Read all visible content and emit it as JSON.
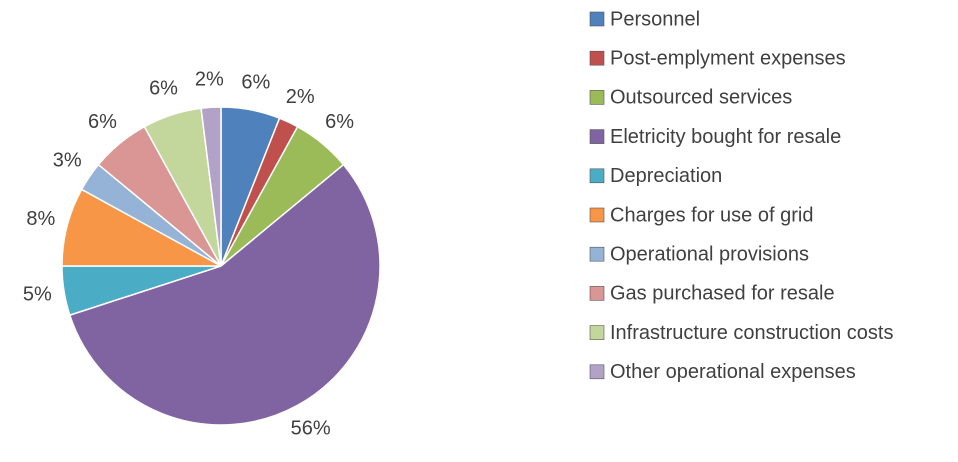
{
  "chart_data": {
    "type": "pie",
    "categories": [
      "Personnel",
      "Post-emplyment expenses",
      "Outsourced services",
      "Eletricity bought for resale",
      "Depreciation",
      "Charges for use of grid",
      "Operational provisions",
      "Gas purchased for resale",
      "Infrastructure construction costs",
      "Other operational expenses"
    ],
    "values": [
      6,
      2,
      6,
      56,
      5,
      8,
      3,
      6,
      6,
      2
    ],
    "value_labels": [
      "6%",
      "2%",
      "6%",
      "56%",
      "5%",
      "8%",
      "3%",
      "6%",
      "6%",
      "2%"
    ],
    "colors": [
      "#4F81BD",
      "#C0504D",
      "#9BBB59",
      "#8064A2",
      "#4BACC6",
      "#F79646",
      "#95B3D7",
      "#D99694",
      "#C3D69B",
      "#B3A2C7"
    ],
    "legend": "right"
  }
}
